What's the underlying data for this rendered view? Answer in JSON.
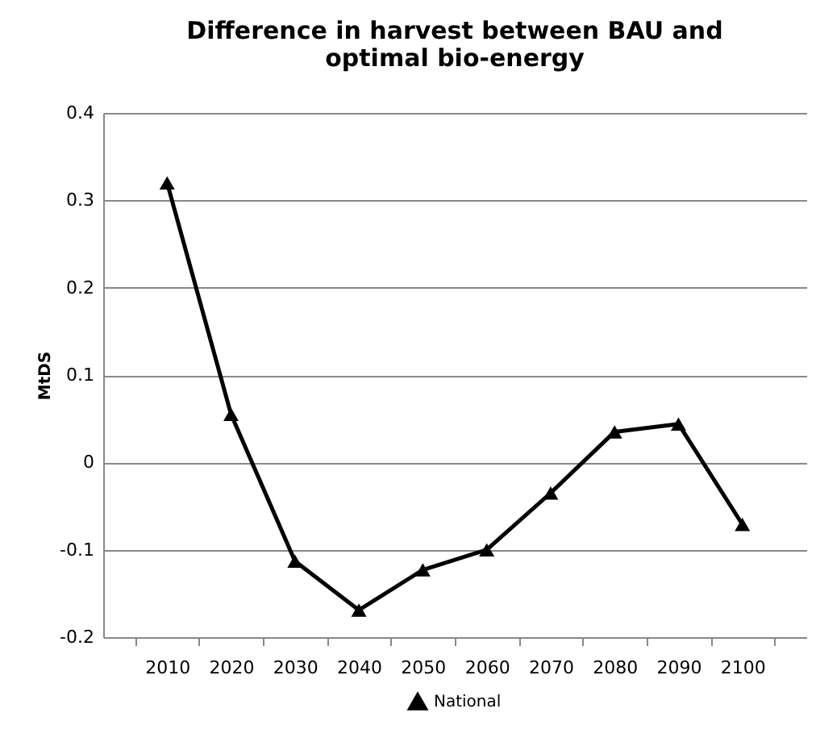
{
  "chart_data": {
    "type": "line",
    "title": [
      "Difference in harvest between BAU and",
      "optimal bio-energy"
    ],
    "ylabel": "MtDS",
    "categories": [
      "2010",
      "2020",
      "2030",
      "2040",
      "2050",
      "2060",
      "2070",
      "2080",
      "2090",
      "2100"
    ],
    "series": [
      {
        "name": "National",
        "color": "#000000",
        "values": [
          0.32,
          0.055,
          -0.113,
          -0.169,
          -0.123,
          -0.1,
          -0.035,
          0.035,
          0.044,
          -0.071
        ]
      }
    ],
    "ylim": [
      -0.2,
      0.4
    ],
    "yticks": [
      -0.2,
      -0.1,
      0,
      0.1,
      0.2,
      0.3,
      0.4
    ],
    "grid": "y",
    "legend": "bottom",
    "marker": "triangle",
    "line_style": "solid"
  }
}
